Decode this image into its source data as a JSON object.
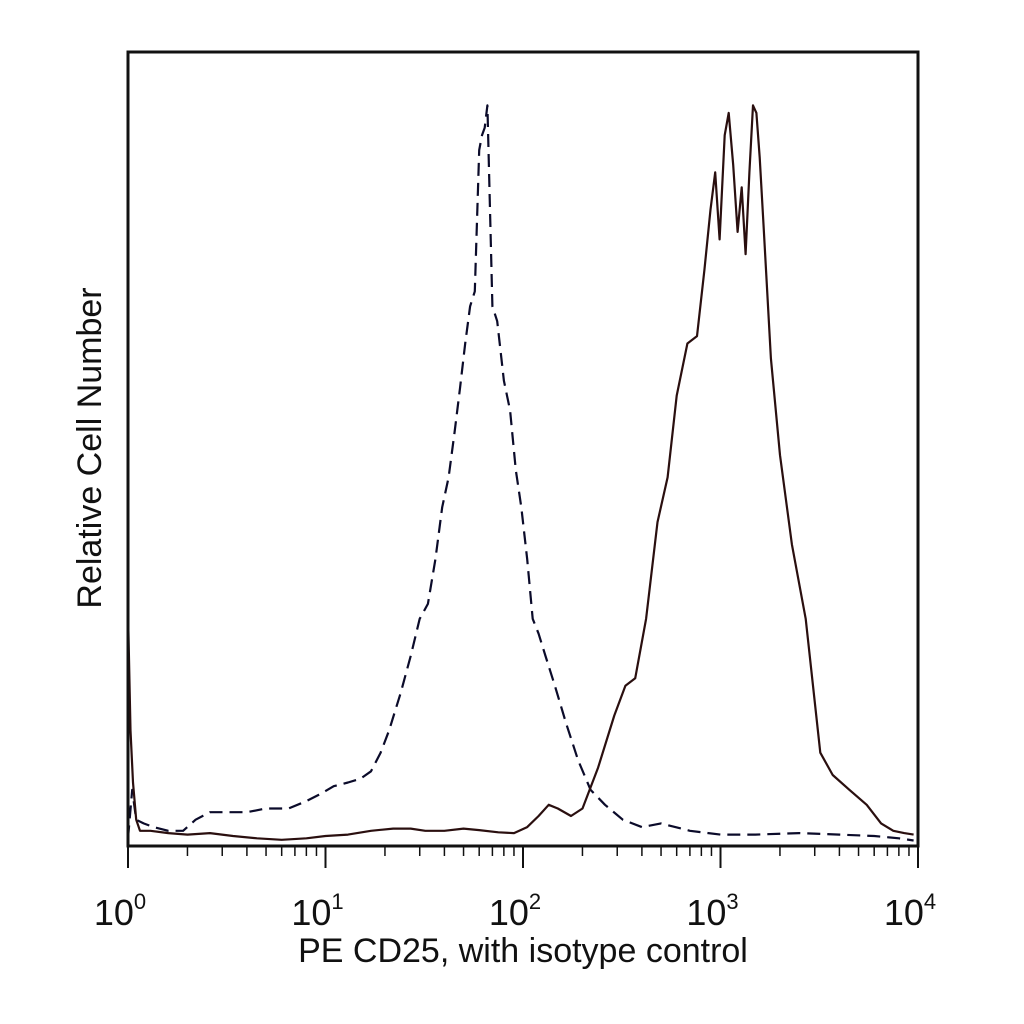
{
  "chart_data": {
    "type": "line",
    "title": "",
    "xlabel": "PE CD25, with isotype control",
    "ylabel": "Relative Cell Number",
    "x_scale": "log",
    "xlim": [
      1,
      10000
    ],
    "ylim": [
      0,
      100
    ],
    "grid": false,
    "x_ticks": [
      {
        "value": 1,
        "base": "10",
        "exp": "0"
      },
      {
        "value": 10,
        "base": "10",
        "exp": "1"
      },
      {
        "value": 100,
        "base": "10",
        "exp": "2"
      },
      {
        "value": 1000,
        "base": "10",
        "exp": "3"
      },
      {
        "value": 10000,
        "base": "10",
        "exp": "4"
      }
    ],
    "series": [
      {
        "style": "dashed",
        "color": "#0b0b2a",
        "x": [
          1.0,
          1.05,
          1.1,
          1.2,
          1.35,
          1.6,
          1.9,
          2.2,
          2.6,
          3.2,
          4.0,
          5.0,
          6.5,
          8.0,
          9.5,
          11,
          13,
          15,
          17,
          19,
          21,
          24,
          27,
          30,
          33,
          36,
          39,
          42,
          45,
          48,
          51,
          54,
          57,
          60,
          62,
          64,
          66,
          70,
          74,
          80,
          86,
          92,
          98,
          105,
          112,
          120,
          130,
          145,
          165,
          190,
          220,
          260,
          320,
          400,
          500,
          700,
          1000,
          1500,
          2500,
          4000,
          6000,
          8000,
          9500
        ],
        "y": [
          0.5,
          7.0,
          3.0,
          2.5,
          2.0,
          1.5,
          1.5,
          3.0,
          4.0,
          4.0,
          4.0,
          4.5,
          4.5,
          5.5,
          6.5,
          7.5,
          8.0,
          8.5,
          9.5,
          12,
          15,
          20,
          25,
          30,
          32,
          38,
          45,
          49,
          55,
          61,
          67,
          72,
          74,
          93,
          95,
          96,
          99,
          72,
          70,
          62,
          58,
          50,
          45,
          38,
          30,
          28,
          25,
          21,
          16,
          11,
          7,
          5,
          3,
          2,
          2.5,
          1.5,
          1.0,
          1.0,
          1.2,
          1.0,
          0.8,
          0.5,
          0.2
        ]
      },
      {
        "style": "solid",
        "color": "#2a0f0f",
        "x": [
          1.0,
          1.03,
          1.06,
          1.1,
          1.15,
          1.3,
          1.6,
          2.0,
          2.6,
          3.4,
          4.5,
          6.0,
          8.0,
          10,
          13,
          17,
          22,
          27,
          32,
          40,
          50,
          60,
          75,
          90,
          105,
          120,
          135,
          150,
          175,
          200,
          240,
          290,
          330,
          370,
          420,
          480,
          540,
          600,
          680,
          760,
          830,
          890,
          940,
          990,
          1050,
          1100,
          1160,
          1220,
          1280,
          1340,
          1400,
          1460,
          1520,
          1580,
          1650,
          1800,
          2000,
          2300,
          2700,
          3200,
          3700,
          4500,
          5500,
          6500,
          7500,
          8500,
          9500
        ],
        "y": [
          31,
          15,
          8,
          3,
          1.5,
          1.5,
          1.2,
          1.0,
          1.2,
          0.8,
          0.5,
          0.3,
          0.5,
          0.8,
          1.0,
          1.5,
          1.8,
          1.8,
          1.5,
          1.5,
          1.8,
          1.6,
          1.3,
          1.2,
          2.0,
          3.5,
          5.0,
          4.5,
          3.5,
          4.5,
          10,
          17,
          21,
          22,
          30,
          43,
          49,
          60,
          67,
          68,
          77,
          85,
          90,
          81,
          95,
          98,
          91,
          82,
          88,
          79,
          90,
          99,
          98,
          92,
          83,
          65,
          52,
          40,
          30,
          12,
          9,
          7,
          5,
          2.5,
          1.5,
          1.2,
          1.0
        ]
      }
    ]
  }
}
